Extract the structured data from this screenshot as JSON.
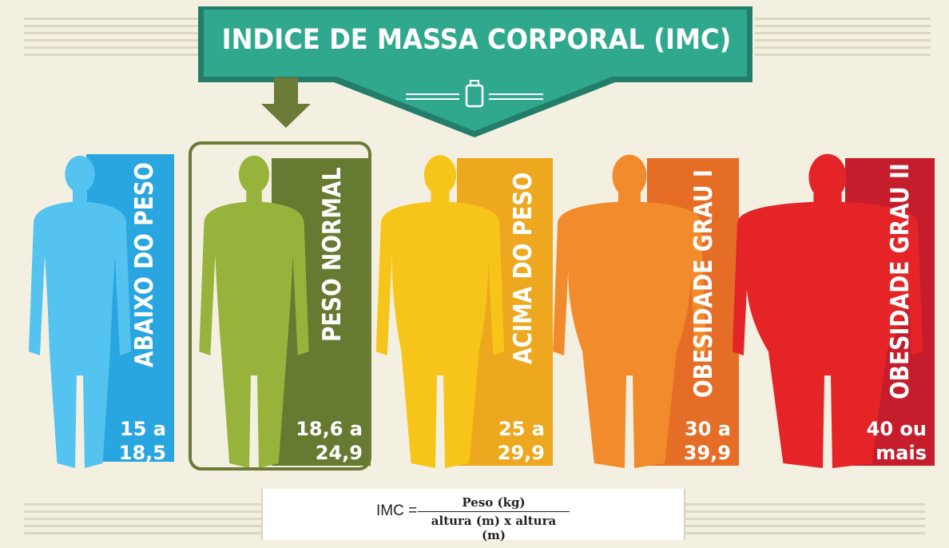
{
  "title": "INDICE DE MASSA CORPORAL (IMC)",
  "colors": {
    "banner": "#2fa88d",
    "banner_dark": "#237d69",
    "arrow": "#6c7a37",
    "background": "#f3f0e1"
  },
  "icons": [
    "weight-icon",
    "down-arrow-icon"
  ],
  "selected_category": 1,
  "categories": [
    {
      "label": "ABAIXO DO PESO",
      "range": "15 a\n18,5",
      "body_color": "#55c3ef",
      "panel_color": "#29a5e0"
    },
    {
      "label": "PESO NORMAL",
      "range": "18,6 a\n24,9",
      "body_color": "#97b33c",
      "panel_color": "#667a32"
    },
    {
      "label": "ACIMA DO PESO",
      "range": "25 a\n29,9",
      "body_color": "#f7c51a",
      "panel_color": "#eda81f"
    },
    {
      "label": "OBESIDADE GRAU I",
      "range": "30 a\n39,9",
      "body_color": "#f28b2c",
      "panel_color": "#e56d26"
    },
    {
      "label": "OBESIDADE GRAU II",
      "range": "40 ou\nmais",
      "body_color": "#e52427",
      "panel_color": "#c51d2c"
    }
  ],
  "formula": {
    "lhs": "IMC =",
    "numerator": "Peso (kg)",
    "denominator": "altura (m) x altura (m)"
  }
}
